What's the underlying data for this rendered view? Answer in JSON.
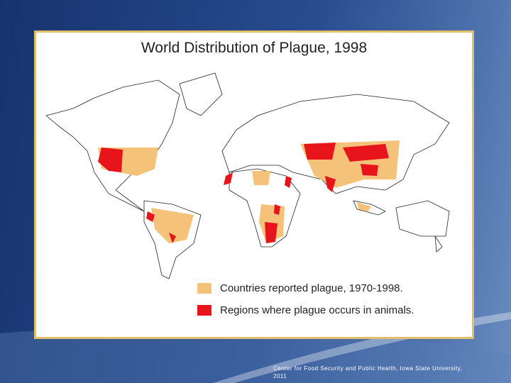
{
  "slide": {
    "title": "World Distribution of Plague, 1998",
    "legend": [
      {
        "label": "Countries reported plague, 1970-1998.",
        "color": "#f5c27a"
      },
      {
        "label": "Regions where plague occurs in animals.",
        "color": "#e8141c"
      }
    ],
    "footer": "Center for Food Security and Public Health, Iowa State University, 2011"
  }
}
